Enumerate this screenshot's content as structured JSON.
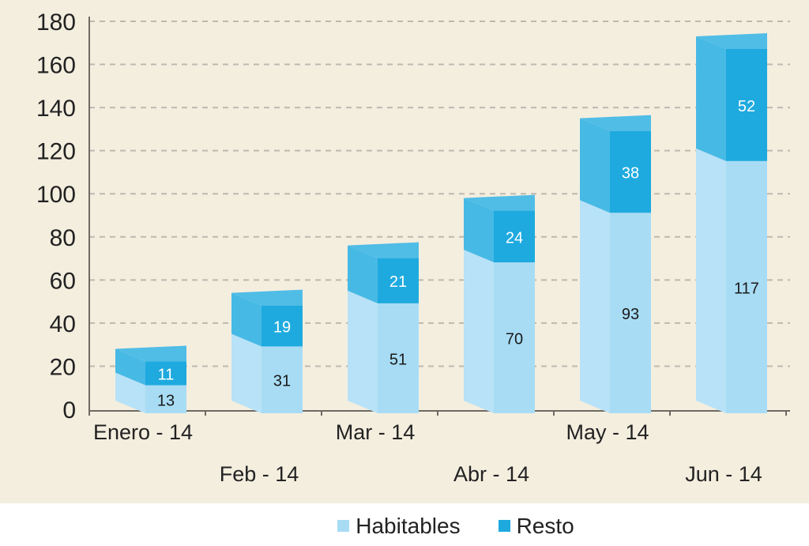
{
  "chart_data": {
    "type": "bar",
    "stacked": true,
    "style": "3d",
    "categories": [
      "Enero - 14",
      "Feb - 14",
      "Mar - 14",
      "Abr - 14",
      "May - 14",
      "Jun - 14"
    ],
    "series": [
      {
        "name": "Habitables",
        "values": [
          13,
          31,
          51,
          70,
          93,
          117
        ],
        "color": "#a8dcf5"
      },
      {
        "name": "Resto",
        "values": [
          11,
          19,
          21,
          24,
          38,
          52
        ],
        "color": "#1eaadf"
      }
    ],
    "y_ticks": [
      "0",
      "20",
      "40",
      "60",
      "80",
      "100",
      "120",
      "140",
      "160",
      "180"
    ],
    "ylim": [
      0,
      180
    ],
    "grid": true,
    "legend_position": "bottom",
    "colors": {
      "plot_background": "#f4eedf",
      "grid": "#bdb9b0",
      "axis": "#6d6a63",
      "text": "#222222"
    }
  }
}
